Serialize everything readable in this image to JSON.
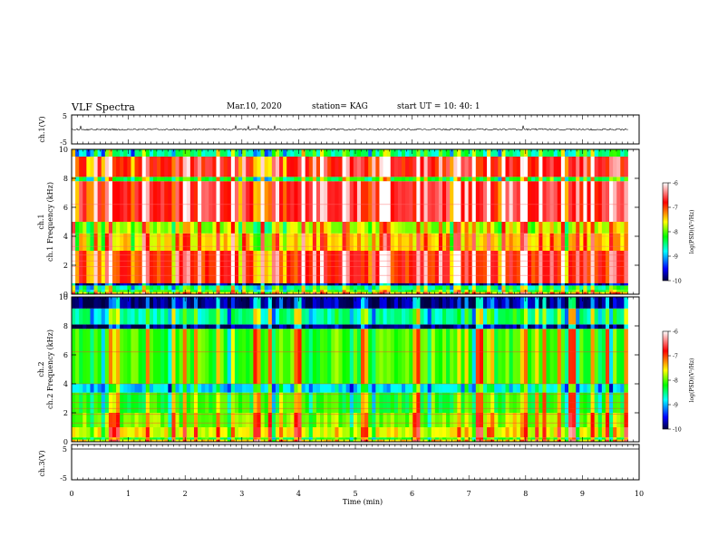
{
  "header": {
    "title": "VLF Spectra",
    "date": "Mar.10, 2020",
    "station": "station= KAG",
    "start": "start  UT  =   10: 40: 1"
  },
  "chart_data": [
    {
      "type": "line",
      "panel": "ch1-waveform",
      "ylabel": "ch.1(V)",
      "ylim": [
        -5,
        5
      ],
      "yticks": [
        "5",
        "-5"
      ],
      "xlim": [
        0,
        10
      ],
      "description_values": {
        "baseline": 0,
        "noise_amplitude": 0.3
      }
    },
    {
      "type": "heatmap",
      "panel": "ch1-spectrogram",
      "ylabel": "ch.1 Frequency (kHz)",
      "ylim": [
        0,
        10
      ],
      "yticks": [
        "0",
        "2",
        "4",
        "6",
        "8",
        "10"
      ],
      "xlim": [
        0,
        9.8
      ],
      "colorbar": {
        "label": "log(PSD)(V²/Hz)",
        "ticks": [
          "-6",
          "-7",
          "-8",
          "-9",
          "-10"
        ],
        "range": [
          -10,
          -6
        ]
      },
      "bands": [
        {
          "from": 0.0,
          "to": 0.15,
          "level": -7.5
        },
        {
          "from": 0.15,
          "to": 0.3,
          "level": -8.2
        },
        {
          "from": 0.3,
          "to": 0.6,
          "level": -8.5
        },
        {
          "from": 0.6,
          "to": 0.75,
          "level": -9.8
        },
        {
          "from": 0.75,
          "to": 3.0,
          "level": -6.9
        },
        {
          "from": 3.0,
          "to": 4.2,
          "level": -7.5
        },
        {
          "from": 4.2,
          "to": 5.0,
          "level": -7.8
        },
        {
          "from": 5.0,
          "to": 7.8,
          "level": -6.7
        },
        {
          "from": 7.8,
          "to": 8.1,
          "level": -8.3
        },
        {
          "from": 8.1,
          "to": 9.5,
          "level": -6.8
        },
        {
          "from": 9.5,
          "to": 10.0,
          "level": -8.6
        }
      ]
    },
    {
      "type": "heatmap",
      "panel": "ch2-spectrogram",
      "ylabel": "ch.2 Frequency (kHz)",
      "ylim": [
        0,
        10
      ],
      "yticks": [
        "0",
        "2",
        "4",
        "6",
        "8",
        "10"
      ],
      "xlim": [
        0,
        9.8
      ],
      "colorbar": {
        "label": "log(PSD)(V²/Hz)",
        "ticks": [
          "-6",
          "-7",
          "-8",
          "-9",
          "-10"
        ],
        "range": [
          -10,
          -6
        ]
      },
      "bands": [
        {
          "from": 0.0,
          "to": 0.15,
          "level": -7.5
        },
        {
          "from": 0.15,
          "to": 0.3,
          "level": -8.2
        },
        {
          "from": 0.3,
          "to": 1.0,
          "level": -7.6
        },
        {
          "from": 1.0,
          "to": 2.0,
          "level": -7.9
        },
        {
          "from": 2.0,
          "to": 3.4,
          "level": -8.2
        },
        {
          "from": 3.4,
          "to": 4.0,
          "level": -8.9
        },
        {
          "from": 4.0,
          "to": 7.8,
          "level": -8.1
        },
        {
          "from": 7.8,
          "to": 8.1,
          "level": -9.9
        },
        {
          "from": 8.1,
          "to": 9.2,
          "level": -8.6
        },
        {
          "from": 9.2,
          "to": 10.0,
          "level": -9.8
        }
      ]
    },
    {
      "type": "line",
      "panel": "ch3-waveform",
      "ylabel": "ch.3(V)",
      "ylim": [
        -5,
        5
      ],
      "yticks": [
        "5",
        "-5"
      ],
      "xlim": [
        0,
        10
      ],
      "xlabel": "Time  (min)",
      "xticks": [
        "0",
        "1",
        "2",
        "3",
        "4",
        "5",
        "6",
        "7",
        "8",
        "9",
        "10"
      ]
    }
  ]
}
